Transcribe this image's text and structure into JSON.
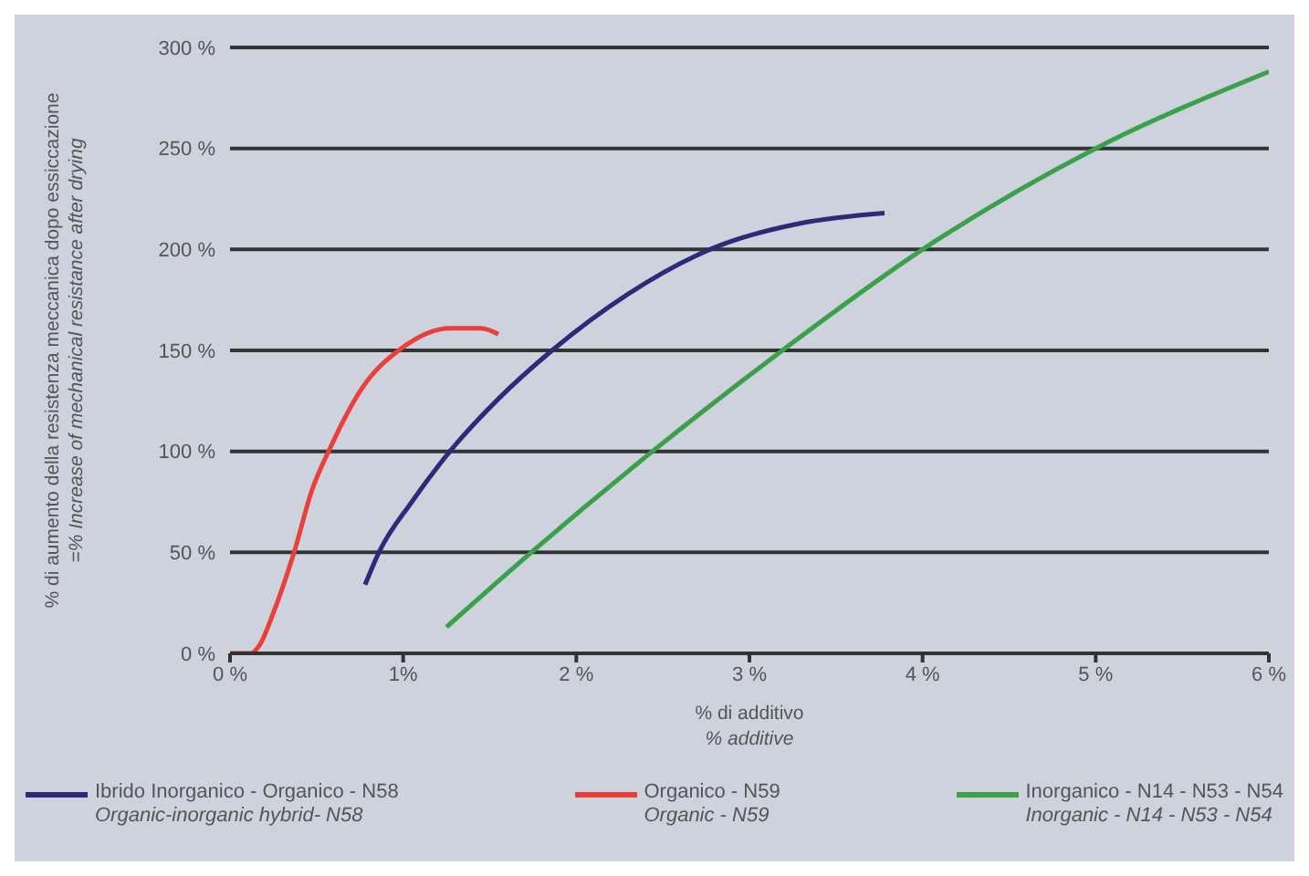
{
  "chart_data": {
    "type": "line",
    "xlabel": "% di additivo\n% additive",
    "ylabel": "% di aumento della resistenza meccanica dopo essiccazione\n=% Increase of mechanical resistance after drying",
    "xlim": [
      0,
      6
    ],
    "xticks": [
      {
        "value": 0,
        "label": "0 %"
      },
      {
        "value": 1,
        "label": "1%"
      },
      {
        "value": 2,
        "label": "2 %"
      },
      {
        "value": 3,
        "label": "3 %"
      },
      {
        "value": 4,
        "label": "4 %"
      },
      {
        "value": 5,
        "label": "5 %"
      },
      {
        "value": 6,
        "label": "6 %"
      }
    ],
    "ylim": [
      0,
      300
    ],
    "yticks": [
      {
        "value": 0,
        "label": "0 %"
      },
      {
        "value": 50,
        "label": "50 %"
      },
      {
        "value": 100,
        "label": "100 %"
      },
      {
        "value": 150,
        "label": "150 %"
      },
      {
        "value": 200,
        "label": "200 %"
      },
      {
        "value": 250,
        "label": "250 %"
      },
      {
        "value": 300,
        "label": "300 %"
      }
    ],
    "grid": "y",
    "legend": "bottom",
    "marker": "none",
    "line_style": "solid",
    "series": [
      {
        "name": "Ibrido Inorganico - Organico - N58\nOrganic-inorganic hybrid- N58",
        "color": "#2e2a7a",
        "x": [
          0.78,
          0.86,
          1.05,
          1.27,
          1.55,
          1.86,
          2.3,
          2.8,
          3.3,
          3.78
        ],
        "values": [
          34,
          50,
          75,
          100,
          126,
          150,
          178,
          201,
          213,
          218
        ]
      },
      {
        "name": "Organico - N59\nOrganic - N59",
        "color": "#e8403a",
        "x": [
          0,
          0.12,
          0.17,
          0.25,
          0.37,
          0.47,
          0.58,
          0.76,
          0.99,
          1.27,
          1.45,
          1.55
        ],
        "values": [
          0,
          0,
          4,
          20,
          50,
          80,
          102,
          131,
          151,
          161,
          161,
          158
        ]
      },
      {
        "name": "Inorganico - N14 - N53 - N54\nInorganic - N14 - N53 - N54",
        "color": "#3aa04a",
        "x": [
          1.25,
          1.74,
          2.44,
          3.19,
          4.0,
          5.0,
          6.0
        ],
        "values": [
          13,
          50,
          100,
          150,
          200,
          250,
          288
        ]
      }
    ]
  }
}
